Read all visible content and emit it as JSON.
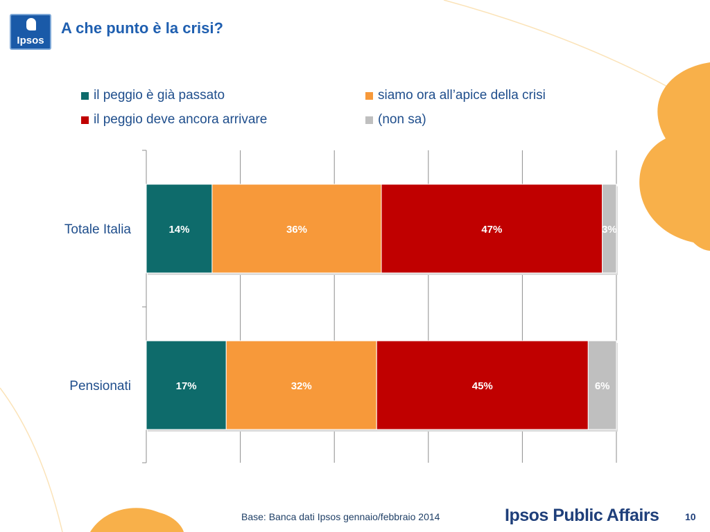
{
  "header": {
    "logo_text": "Ipsos",
    "title": "A che punto è la crisi?"
  },
  "legend": [
    {
      "label": "il peggio è già passato",
      "color": "#0e6b6b"
    },
    {
      "label": "siamo ora all’apice della crisi",
      "color": "#f7993a"
    },
    {
      "label": "il peggio deve ancora arrivare",
      "color": "#c00000"
    },
    {
      "label": "(non sa)",
      "color": "#bfbfbf"
    }
  ],
  "chart_data": {
    "type": "bar",
    "orientation": "horizontal",
    "stacked": true,
    "categories": [
      "Totale Italia",
      "Pensionati"
    ],
    "series": [
      {
        "name": "il peggio è già passato",
        "color": "#0e6b6b",
        "values": [
          14,
          17
        ],
        "labels": [
          "14%",
          "17%"
        ]
      },
      {
        "name": "siamo ora all’apice della crisi",
        "color": "#f7993a",
        "values": [
          36,
          32
        ],
        "labels": [
          "36%",
          "32%"
        ]
      },
      {
        "name": "il peggio deve ancora arrivare",
        "color": "#c00000",
        "values": [
          47,
          45
        ],
        "labels": [
          "47%",
          "45%"
        ]
      },
      {
        "name": "(non sa)",
        "color": "#bfbfbf",
        "values": [
          3,
          6
        ],
        "labels": [
          "3%",
          "6%"
        ]
      }
    ],
    "xlim": [
      0,
      100
    ],
    "grid": true,
    "legend_position": "top"
  },
  "footer": {
    "base": "Base: Banca dati Ipsos gennaio/febbraio 2014",
    "brand": "Ipsos Public Affairs",
    "page_number": "10"
  }
}
